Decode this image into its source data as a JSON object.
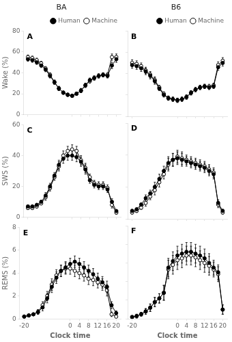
{
  "chart_data": [
    {
      "type": "line",
      "title": "BA",
      "annotations": [
        "A"
      ],
      "ylabel": "Wake (%)",
      "x": [
        -20,
        -18,
        -16,
        -14,
        -12,
        -10,
        -8,
        -6,
        -4,
        -2,
        0,
        2,
        4,
        6,
        8,
        10,
        12,
        14,
        16,
        18,
        20
      ],
      "xlim": [
        -22,
        22
      ],
      "xticks": [
        -20,
        0,
        4,
        8,
        12,
        16,
        20
      ],
      "ylim": [
        0,
        80
      ],
      "yticks": [
        0,
        20,
        40,
        60,
        80
      ],
      "grid": false,
      "legend": "upper right",
      "tick_labels": "y",
      "series": [
        {
          "name": "Human",
          "color": "black",
          "marker": "circle",
          "values": [
            53,
            52,
            50,
            47,
            43,
            37,
            31,
            25,
            21,
            19,
            18,
            20,
            23,
            28,
            33,
            35,
            37,
            38,
            37,
            47,
            53
          ],
          "errors": [
            2,
            2,
            2,
            2,
            2,
            2,
            2,
            2,
            1.5,
            1.5,
            1.5,
            1.5,
            2,
            2,
            2,
            2,
            2,
            2,
            2,
            3,
            3
          ]
        },
        {
          "name": "Machine",
          "color": "black",
          "marker": "open_circle",
          "values": [
            55,
            54,
            52,
            49,
            44,
            38,
            31,
            25,
            21,
            19,
            18,
            20,
            23,
            28,
            32,
            35,
            37,
            38,
            38,
            55,
            55
          ],
          "errors": [
            2,
            2,
            2,
            2,
            2,
            2,
            2,
            2,
            1.5,
            1.5,
            1.5,
            1.5,
            2,
            2,
            2,
            2,
            2,
            2,
            2,
            3,
            3
          ]
        }
      ]
    },
    {
      "type": "line",
      "title": "B6",
      "annotations": [
        "B"
      ],
      "x": [
        -20,
        -18,
        -16,
        -14,
        -12,
        -10,
        -8,
        -6,
        -4,
        -2,
        0,
        2,
        4,
        6,
        8,
        10,
        12,
        14,
        16,
        18,
        20
      ],
      "xlim": [
        -22,
        22
      ],
      "xticks": [
        -20,
        0,
        4,
        8,
        12,
        16,
        20
      ],
      "ylim": [
        0,
        80
      ],
      "yticks": [
        0,
        20,
        40,
        60,
        80
      ],
      "grid": false,
      "legend": "upper right",
      "tick_labels": false,
      "series": [
        {
          "name": "Human",
          "color": "black",
          "marker": "circle",
          "values": [
            48,
            47,
            45,
            42,
            38,
            33,
            26,
            20,
            17,
            16,
            15,
            16,
            18,
            22,
            25,
            27,
            28,
            27,
            28,
            46,
            50
          ],
          "errors": [
            3,
            3,
            3,
            3,
            3,
            3,
            2,
            2,
            2,
            2,
            2,
            2,
            2,
            2,
            2,
            2,
            2,
            2,
            2,
            3,
            3
          ]
        },
        {
          "name": "Machine",
          "color": "black",
          "marker": "open_circle",
          "values": [
            50,
            49,
            47,
            43,
            39,
            34,
            27,
            21,
            17,
            16,
            15,
            16,
            18,
            22,
            25,
            27,
            28,
            28,
            29,
            48,
            52
          ],
          "errors": [
            3,
            3,
            3,
            3,
            3,
            3,
            2,
            2,
            2,
            2,
            2,
            2,
            2,
            2,
            2,
            2,
            2,
            2,
            2,
            3,
            3
          ]
        }
      ]
    },
    {
      "type": "line",
      "annotations": [
        "C"
      ],
      "ylabel": "SWS (%)",
      "x": [
        -20,
        -18,
        -16,
        -14,
        -12,
        -10,
        -8,
        -6,
        -4,
        -2,
        0,
        2,
        4,
        6,
        8,
        10,
        12,
        14,
        16,
        18,
        20
      ],
      "xlim": [
        -22,
        22
      ],
      "xticks": [
        -20,
        0,
        4,
        8,
        12,
        16,
        20
      ],
      "ylim": [
        0,
        60
      ],
      "yticks": [
        0,
        20,
        40,
        60
      ],
      "grid": false,
      "tick_labels": "y",
      "series": [
        {
          "name": "Human",
          "color": "black",
          "marker": "circle",
          "values": [
            7,
            7,
            8,
            10,
            14,
            20,
            27,
            34,
            38,
            40,
            40,
            39,
            36,
            31,
            24,
            21,
            20,
            20,
            18,
            10,
            4
          ],
          "errors": [
            1,
            1,
            1,
            1,
            2,
            2,
            2,
            3,
            3,
            3,
            3,
            3,
            3,
            3,
            2,
            2,
            2,
            2,
            2,
            2,
            1
          ]
        },
        {
          "name": "Machine",
          "color": "black",
          "marker": "open_circle",
          "values": [
            6,
            6,
            7,
            9,
            13,
            19,
            26,
            33,
            40,
            43,
            44,
            43,
            37,
            32,
            26,
            22,
            21,
            21,
            19,
            8,
            3
          ],
          "errors": [
            1,
            1,
            1,
            1,
            2,
            2,
            2,
            3,
            3,
            3,
            3,
            3,
            3,
            3,
            2,
            2,
            2,
            2,
            2,
            2,
            1
          ]
        }
      ]
    },
    {
      "type": "line",
      "annotations": [
        "D"
      ],
      "x": [
        -20,
        -18,
        -16,
        -14,
        -12,
        -10,
        -8,
        -6,
        -4,
        -2,
        0,
        2,
        4,
        6,
        8,
        10,
        12,
        14,
        16,
        18,
        20
      ],
      "xlim": [
        -22,
        22
      ],
      "xticks": [
        -20,
        0,
        4,
        8,
        12,
        16,
        20
      ],
      "ylim": [
        0,
        60
      ],
      "yticks": [
        0,
        20,
        40,
        60
      ],
      "grid": false,
      "tick_labels": false,
      "series": [
        {
          "name": "Human",
          "color": "black",
          "marker": "circle",
          "values": [
            5,
            6,
            9,
            13,
            16,
            20,
            25,
            30,
            35,
            37,
            38,
            37,
            36,
            35,
            34,
            33,
            32,
            30,
            28,
            10,
            5
          ],
          "errors": [
            1,
            1,
            1,
            2,
            2,
            3,
            3,
            3,
            4,
            4,
            4,
            4,
            3,
            3,
            3,
            3,
            3,
            3,
            3,
            2,
            1
          ]
        },
        {
          "name": "Machine",
          "color": "black",
          "marker": "open_circle",
          "values": [
            4,
            5,
            7,
            10,
            14,
            18,
            23,
            28,
            34,
            37,
            39,
            38,
            37,
            36,
            35,
            34,
            33,
            31,
            29,
            9,
            4
          ],
          "errors": [
            1,
            1,
            1,
            2,
            2,
            3,
            3,
            3,
            4,
            4,
            4,
            4,
            3,
            3,
            3,
            3,
            3,
            3,
            3,
            2,
            1
          ]
        }
      ]
    },
    {
      "type": "line",
      "annotations": [
        "E"
      ],
      "ylabel": "REMS (%)",
      "xlabel": "Clock time",
      "x": [
        -20,
        -18,
        -16,
        -14,
        -12,
        -10,
        -8,
        -6,
        -4,
        -2,
        0,
        2,
        4,
        6,
        8,
        10,
        12,
        14,
        16,
        18,
        20
      ],
      "xlim": [
        -22,
        22
      ],
      "xticks": [
        -20,
        0,
        4,
        8,
        12,
        16,
        20
      ],
      "ylim": [
        0,
        8
      ],
      "yticks": [
        0,
        2,
        4,
        6,
        8
      ],
      "grid": false,
      "series": [
        {
          "name": "Human",
          "color": "black",
          "marker": "circle",
          "values": [
            0.2,
            0.3,
            0.4,
            0.6,
            1.0,
            1.8,
            2.8,
            3.6,
            4.2,
            4.5,
            4.8,
            5.0,
            4.8,
            4.5,
            4.2,
            3.9,
            3.5,
            3.2,
            2.8,
            1.2,
            0.5
          ],
          "errors": [
            0.1,
            0.1,
            0.1,
            0.2,
            0.3,
            0.4,
            0.5,
            0.5,
            0.5,
            0.5,
            0.5,
            0.5,
            0.5,
            0.5,
            0.5,
            0.5,
            0.5,
            0.5,
            0.5,
            0.3,
            0.2
          ]
        },
        {
          "name": "Machine",
          "color": "black",
          "marker": "open_circle",
          "values": [
            0.2,
            0.3,
            0.4,
            0.6,
            1.2,
            2.0,
            3.0,
            3.8,
            4.2,
            4.4,
            4.4,
            4.2,
            4.0,
            3.8,
            3.5,
            3.4,
            3.2,
            3.0,
            2.5,
            0.4,
            0.2
          ],
          "errors": [
            0.1,
            0.1,
            0.1,
            0.2,
            0.3,
            0.4,
            0.5,
            0.5,
            0.5,
            0.5,
            0.5,
            0.5,
            0.5,
            0.5,
            0.5,
            0.5,
            0.5,
            0.5,
            0.5,
            0.2,
            0.1
          ]
        }
      ]
    },
    {
      "type": "line",
      "annotations": [
        "F"
      ],
      "xlabel": "Clock time",
      "x": [
        -20,
        -18,
        -16,
        -14,
        -12,
        -10,
        -8,
        -6,
        -4,
        -2,
        0,
        2,
        4,
        6,
        8,
        10,
        12,
        14,
        16,
        18,
        20
      ],
      "xlim": [
        -22,
        22
      ],
      "xticks": [
        -20,
        0,
        4,
        8,
        12,
        16,
        20
      ],
      "ylim": [
        0,
        10
      ],
      "yticks": [
        0,
        2,
        4,
        6,
        8,
        10
      ],
      "grid": false,
      "tick_labels": "x",
      "series": [
        {
          "name": "Human",
          "color": "black",
          "marker": "circle",
          "values": [
            0.2,
            0.3,
            0.5,
            0.8,
            1.2,
            1.8,
            2.2,
            2.8,
            5.5,
            6.2,
            6.8,
            7.0,
            7.2,
            7.2,
            7.0,
            6.8,
            6.5,
            6.0,
            5.5,
            5.0,
            1.0
          ],
          "errors": [
            0.1,
            0.2,
            0.2,
            0.3,
            0.4,
            0.5,
            0.5,
            0.8,
            1.0,
            1.0,
            1.0,
            1.0,
            1.0,
            1.0,
            1.0,
            1.0,
            1.0,
            1.0,
            0.8,
            0.8,
            0.5
          ]
        },
        {
          "name": "Machine",
          "color": "black",
          "marker": "open_circle",
          "values": [
            0.2,
            0.3,
            0.5,
            0.8,
            1.2,
            1.8,
            2.2,
            2.8,
            5.3,
            5.8,
            6.3,
            6.5,
            6.8,
            6.8,
            6.6,
            6.3,
            6.0,
            5.7,
            5.3,
            4.8,
            1.0
          ],
          "errors": [
            0.1,
            0.2,
            0.2,
            0.3,
            0.4,
            0.5,
            0.5,
            0.8,
            1.0,
            1.0,
            1.0,
            1.0,
            1.0,
            1.0,
            1.0,
            1.0,
            1.0,
            1.0,
            0.8,
            0.8,
            0.5
          ]
        }
      ]
    }
  ]
}
